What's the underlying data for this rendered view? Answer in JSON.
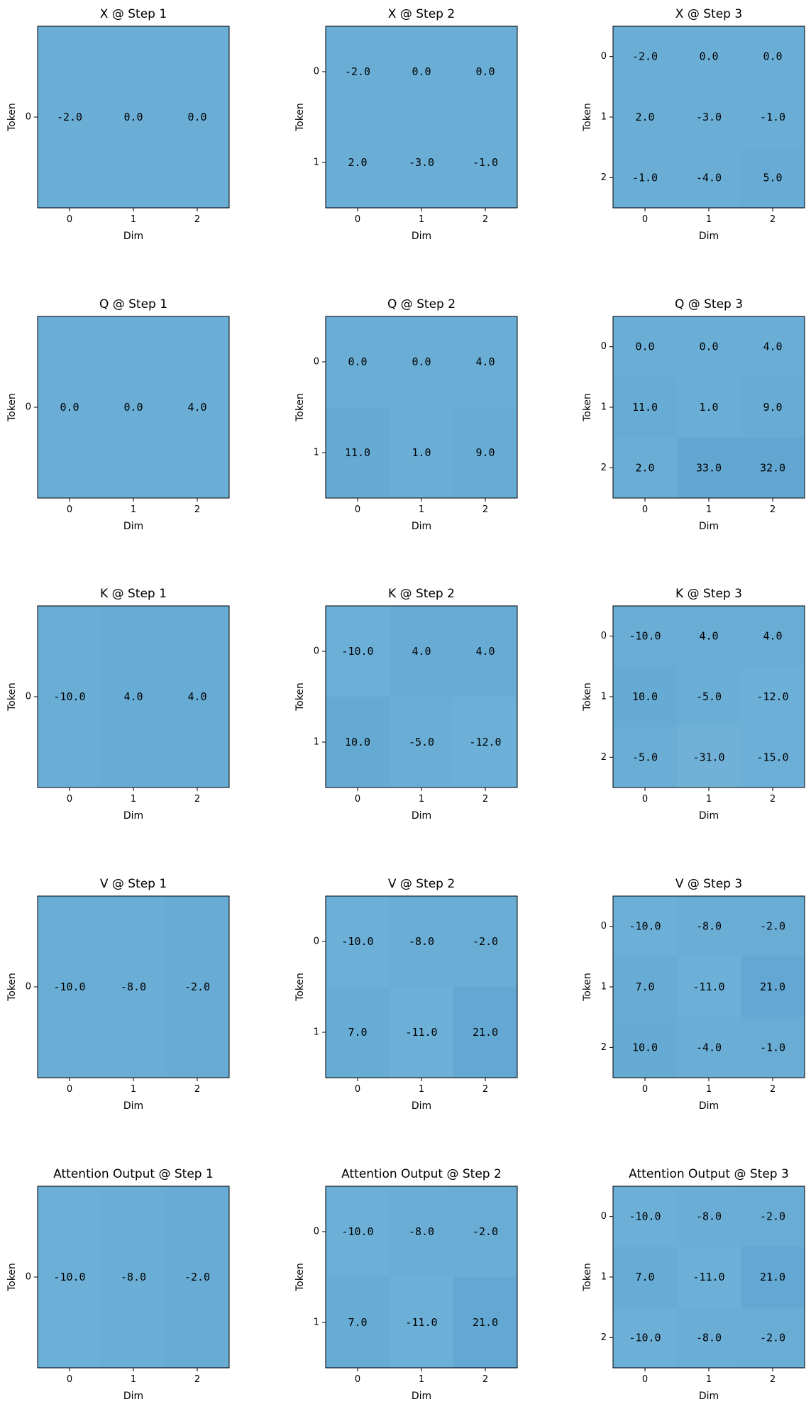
{
  "figure": {
    "background": "#ffffff"
  },
  "chart_data": [
    {
      "type": "heatmap",
      "title": "X @ Step 1",
      "xlabel": "Dim",
      "ylabel": "Token",
      "x_ticks": [
        "0",
        "1",
        "2"
      ],
      "y_ticks": [
        "0"
      ],
      "values": [
        [
          -2.0,
          0.0,
          0.0
        ]
      ],
      "labels": [
        [
          "-2.0",
          "0.0",
          "0.0"
        ]
      ],
      "colors": [
        [
          "#6aaed6",
          "#6aaed6",
          "#6aaed6"
        ]
      ]
    },
    {
      "type": "heatmap",
      "title": "X @ Step 2",
      "xlabel": "Dim",
      "ylabel": "Token",
      "x_ticks": [
        "0",
        "1",
        "2"
      ],
      "y_ticks": [
        "0",
        "1"
      ],
      "values": [
        [
          -2.0,
          0.0,
          0.0
        ],
        [
          2.0,
          -3.0,
          -1.0
        ]
      ],
      "labels": [
        [
          "-2.0",
          "0.0",
          "0.0"
        ],
        [
          "2.0",
          "-3.0",
          "-1.0"
        ]
      ],
      "colors": [
        [
          "#6aaed6",
          "#6aaed6",
          "#6aaed6"
        ],
        [
          "#6aaed6",
          "#6aaed6",
          "#6aaed6"
        ]
      ]
    },
    {
      "type": "heatmap",
      "title": "X @ Step 3",
      "xlabel": "Dim",
      "ylabel": "Token",
      "x_ticks": [
        "0",
        "1",
        "2"
      ],
      "y_ticks": [
        "0",
        "1",
        "2"
      ],
      "values": [
        [
          -2.0,
          0.0,
          0.0
        ],
        [
          2.0,
          -3.0,
          -1.0
        ],
        [
          -1.0,
          -4.0,
          5.0
        ]
      ],
      "labels": [
        [
          "-2.0",
          "0.0",
          "0.0"
        ],
        [
          "2.0",
          "-3.0",
          "-1.0"
        ],
        [
          "-1.0",
          "-4.0",
          "5.0"
        ]
      ],
      "colors": [
        [
          "#6aaed6",
          "#6aaed6",
          "#6aaed6"
        ],
        [
          "#6aaed6",
          "#6aaed6",
          "#6aaed6"
        ],
        [
          "#6aaed6",
          "#6aaed6",
          "#68acd5"
        ]
      ]
    },
    {
      "type": "heatmap",
      "title": "Q @ Step 1",
      "xlabel": "Dim",
      "ylabel": "Token",
      "x_ticks": [
        "0",
        "1",
        "2"
      ],
      "y_ticks": [
        "0"
      ],
      "values": [
        [
          0.0,
          0.0,
          4.0
        ]
      ],
      "labels": [
        [
          "0.0",
          "0.0",
          "4.0"
        ]
      ],
      "colors": [
        [
          "#6aaed6",
          "#6aaed6",
          "#6aaed6"
        ]
      ]
    },
    {
      "type": "heatmap",
      "title": "Q @ Step 2",
      "xlabel": "Dim",
      "ylabel": "Token",
      "x_ticks": [
        "0",
        "1",
        "2"
      ],
      "y_ticks": [
        "0",
        "1"
      ],
      "values": [
        [
          0.0,
          0.0,
          4.0
        ],
        [
          11.0,
          1.0,
          9.0
        ]
      ],
      "labels": [
        [
          "0.0",
          "0.0",
          "4.0"
        ],
        [
          "11.0",
          "1.0",
          "9.0"
        ]
      ],
      "colors": [
        [
          "#6aaed6",
          "#6aaed6",
          "#6aaed6"
        ],
        [
          "#66abd4",
          "#6aaed6",
          "#67acd5"
        ]
      ]
    },
    {
      "type": "heatmap",
      "title": "Q @ Step 3",
      "xlabel": "Dim",
      "ylabel": "Token",
      "x_ticks": [
        "0",
        "1",
        "2"
      ],
      "y_ticks": [
        "0",
        "1",
        "2"
      ],
      "values": [
        [
          0.0,
          0.0,
          4.0
        ],
        [
          11.0,
          1.0,
          9.0
        ],
        [
          2.0,
          33.0,
          32.0
        ]
      ],
      "labels": [
        [
          "0.0",
          "0.0",
          "4.0"
        ],
        [
          "11.0",
          "1.0",
          "9.0"
        ],
        [
          "2.0",
          "33.0",
          "32.0"
        ]
      ],
      "colors": [
        [
          "#6aaed6",
          "#6aaed6",
          "#6aaed6"
        ],
        [
          "#67acd5",
          "#6aaed6",
          "#68acd5"
        ],
        [
          "#6aaed6",
          "#61a7d2",
          "#61a7d2"
        ]
      ]
    },
    {
      "type": "heatmap",
      "title": "K @ Step 1",
      "xlabel": "Dim",
      "ylabel": "Token",
      "x_ticks": [
        "0",
        "1",
        "2"
      ],
      "y_ticks": [
        "0"
      ],
      "values": [
        [
          -10.0,
          4.0,
          4.0
        ]
      ],
      "labels": [
        [
          "-10.0",
          "4.0",
          "4.0"
        ]
      ],
      "colors": [
        [
          "#6aaed6",
          "#67acd5",
          "#67acd5"
        ]
      ]
    },
    {
      "type": "heatmap",
      "title": "K @ Step 2",
      "xlabel": "Dim",
      "ylabel": "Token",
      "x_ticks": [
        "0",
        "1",
        "2"
      ],
      "y_ticks": [
        "0",
        "1"
      ],
      "values": [
        [
          -10.0,
          4.0,
          4.0
        ],
        [
          10.0,
          -5.0,
          -12.0
        ]
      ],
      "labels": [
        [
          "-10.0",
          "4.0",
          "4.0"
        ],
        [
          "10.0",
          "-5.0",
          "-12.0"
        ]
      ],
      "colors": [
        [
          "#6cafd7",
          "#68acd5",
          "#68acd5"
        ],
        [
          "#64aad3",
          "#6aaed6",
          "#6cafd7"
        ]
      ]
    },
    {
      "type": "heatmap",
      "title": "K @ Step 3",
      "xlabel": "Dim",
      "ylabel": "Token",
      "x_ticks": [
        "0",
        "1",
        "2"
      ],
      "y_ticks": [
        "0",
        "1",
        "2"
      ],
      "values": [
        [
          -10.0,
          4.0,
          4.0
        ],
        [
          10.0,
          -5.0,
          -12.0
        ],
        [
          -5.0,
          -31.0,
          -15.0
        ]
      ],
      "labels": [
        [
          "-10.0",
          "4.0",
          "4.0"
        ],
        [
          "10.0",
          "-5.0",
          "-12.0"
        ],
        [
          "-5.0",
          "-31.0",
          "-15.0"
        ]
      ],
      "colors": [
        [
          "#6aaed6",
          "#69add5",
          "#69add5"
        ],
        [
          "#66abd4",
          "#6aaed6",
          "#6cafd7"
        ],
        [
          "#6aaed6",
          "#71b1d7",
          "#6cafd7"
        ]
      ]
    },
    {
      "type": "heatmap",
      "title": "V @ Step 1",
      "xlabel": "Dim",
      "ylabel": "Token",
      "x_ticks": [
        "0",
        "1",
        "2"
      ],
      "y_ticks": [
        "0"
      ],
      "values": [
        [
          -10.0,
          -8.0,
          -2.0
        ]
      ],
      "labels": [
        [
          "-10.0",
          "-8.0",
          "-2.0"
        ]
      ],
      "colors": [
        [
          "#6aaed6",
          "#6aaed6",
          "#68acd5"
        ]
      ]
    },
    {
      "type": "heatmap",
      "title": "V @ Step 2",
      "xlabel": "Dim",
      "ylabel": "Token",
      "x_ticks": [
        "0",
        "1",
        "2"
      ],
      "y_ticks": [
        "0",
        "1"
      ],
      "values": [
        [
          -10.0,
          -8.0,
          -2.0
        ],
        [
          7.0,
          -11.0,
          21.0
        ]
      ],
      "labels": [
        [
          "-10.0",
          "-8.0",
          "-2.0"
        ],
        [
          "7.0",
          "-11.0",
          "21.0"
        ]
      ],
      "colors": [
        [
          "#6cafd7",
          "#6aaed6",
          "#69add5"
        ],
        [
          "#67acd5",
          "#6cafd7",
          "#62a8d3"
        ]
      ]
    },
    {
      "type": "heatmap",
      "title": "V @ Step 3",
      "xlabel": "Dim",
      "ylabel": "Token",
      "x_ticks": [
        "0",
        "1",
        "2"
      ],
      "y_ticks": [
        "0",
        "1",
        "2"
      ],
      "values": [
        [
          -10.0,
          -8.0,
          -2.0
        ],
        [
          7.0,
          -11.0,
          21.0
        ],
        [
          10.0,
          -4.0,
          -1.0
        ]
      ],
      "labels": [
        [
          "-10.0",
          "-8.0",
          "-2.0"
        ],
        [
          "7.0",
          "-11.0",
          "21.0"
        ],
        [
          "10.0",
          "-4.0",
          "-1.0"
        ]
      ],
      "colors": [
        [
          "#6cafd7",
          "#6aaed6",
          "#69add5"
        ],
        [
          "#67acd5",
          "#6cafd7",
          "#62a8d3"
        ],
        [
          "#66abd4",
          "#6aaed6",
          "#69add5"
        ]
      ]
    },
    {
      "type": "heatmap",
      "title": "Attention Output @ Step 1",
      "xlabel": "Dim",
      "ylabel": "Token",
      "x_ticks": [
        "0",
        "1",
        "2"
      ],
      "y_ticks": [
        "0"
      ],
      "values": [
        [
          -10.0,
          -8.0,
          -2.0
        ]
      ],
      "labels": [
        [
          "-10.0",
          "-8.0",
          "-2.0"
        ]
      ],
      "colors": [
        [
          "#6cafd7",
          "#6aaed6",
          "#68acd5"
        ]
      ]
    },
    {
      "type": "heatmap",
      "title": "Attention Output @ Step 2",
      "xlabel": "Dim",
      "ylabel": "Token",
      "x_ticks": [
        "0",
        "1",
        "2"
      ],
      "y_ticks": [
        "0",
        "1"
      ],
      "values": [
        [
          -10.0,
          -8.0,
          -2.0
        ],
        [
          7.0,
          -11.0,
          21.0
        ]
      ],
      "labels": [
        [
          "-10.0",
          "-8.0",
          "-2.0"
        ],
        [
          "7.0",
          "-11.0",
          "21.0"
        ]
      ],
      "colors": [
        [
          "#6cafd7",
          "#6aaed6",
          "#69add5"
        ],
        [
          "#67acd5",
          "#6cafd7",
          "#62a8d3"
        ]
      ]
    },
    {
      "type": "heatmap",
      "title": "Attention Output @ Step 3",
      "xlabel": "Dim",
      "ylabel": "Token",
      "x_ticks": [
        "0",
        "1",
        "2"
      ],
      "y_ticks": [
        "0",
        "1",
        "2"
      ],
      "values": [
        [
          -10.0,
          -8.0,
          -2.0
        ],
        [
          7.0,
          -11.0,
          21.0
        ],
        [
          -10.0,
          -8.0,
          -2.0
        ]
      ],
      "labels": [
        [
          "-10.0",
          "-8.0",
          "-2.0"
        ],
        [
          "7.0",
          "-11.0",
          "21.0"
        ],
        [
          "-10.0",
          "-8.0",
          "-2.0"
        ]
      ],
      "colors": [
        [
          "#6cafd7",
          "#6aaed6",
          "#69add5"
        ],
        [
          "#67acd5",
          "#6cafd7",
          "#62a8d3"
        ],
        [
          "#6cafd7",
          "#6aaed6",
          "#69add5"
        ]
      ]
    }
  ]
}
